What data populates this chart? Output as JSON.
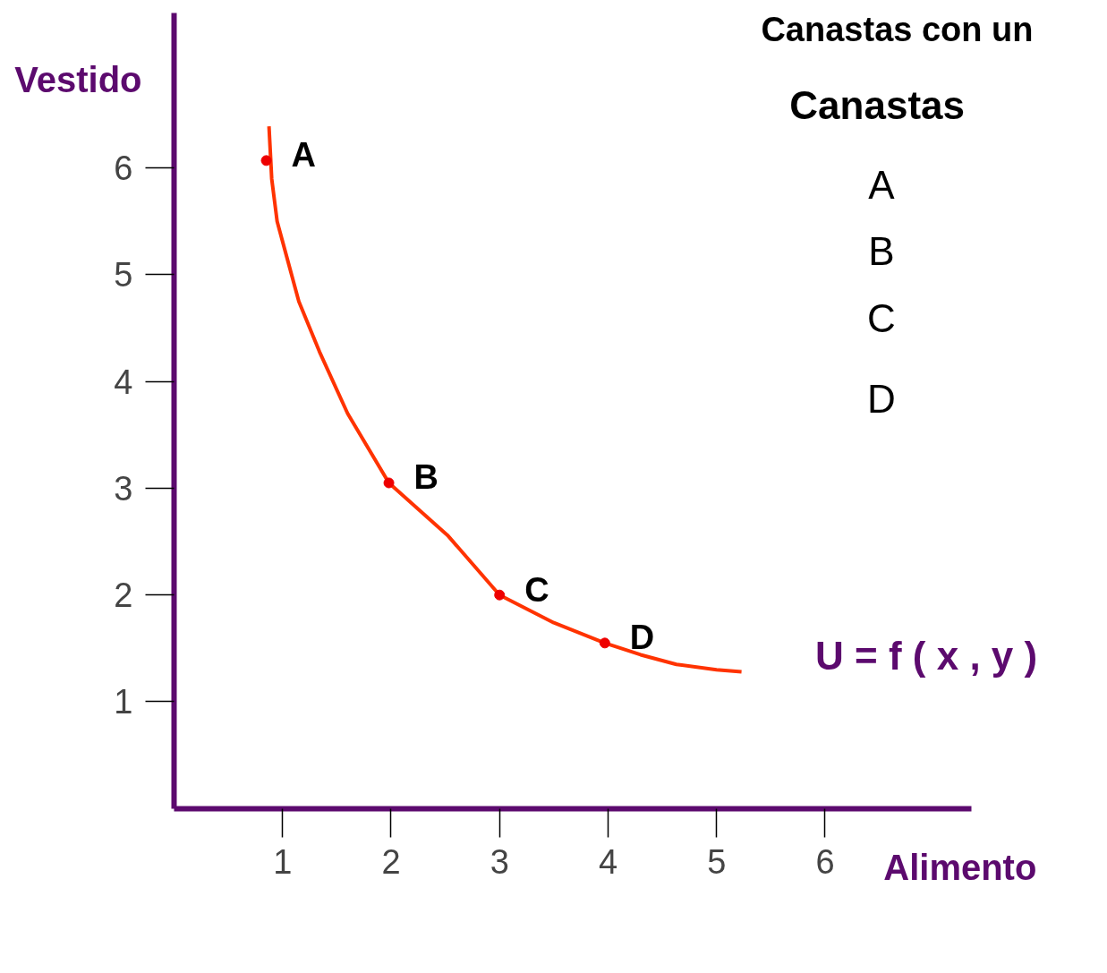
{
  "chart_data": {
    "type": "line",
    "xlabel": "Alimento",
    "ylabel": "Vestido",
    "xlim": [
      0,
      7.35
    ],
    "ylim": [
      0,
      7.45
    ],
    "xticks": [
      1,
      2,
      3,
      4,
      5,
      6
    ],
    "yticks": [
      1,
      2,
      3,
      4,
      5,
      6
    ],
    "grid": false,
    "series": [
      {
        "color": "#ff3300",
        "x": [
          0.875,
          0.9,
          0.95,
          1.03,
          1.15,
          1.34,
          1.6,
          1.98,
          2.52,
          3.0,
          3.5,
          3.97,
          4.3,
          4.63,
          5.0,
          5.23
        ],
        "values": [
          6.39,
          5.9,
          5.5,
          5.2,
          4.75,
          4.28,
          3.7,
          3.05,
          2.56,
          2.0,
          1.74,
          1.55,
          1.44,
          1.35,
          1.3,
          1.28
        ],
        "marker": "none"
      },
      {
        "type": "scatter",
        "color": "#ee0000",
        "x": [
          0.85,
          1.98,
          3.0,
          3.97
        ],
        "values": [
          6.07,
          3.05,
          2.0,
          1.55
        ],
        "marker": "circle"
      }
    ],
    "annotations": [
      {
        "text": "A",
        "x": 0.85,
        "y": 6.07
      },
      {
        "text": "B",
        "x": 1.98,
        "y": 3.05
      },
      {
        "text": "C",
        "x": 3.0,
        "y": 2.0
      },
      {
        "text": "D",
        "x": 3.97,
        "y": 1.55
      },
      "U = f ( x , y )",
      "Canastas con un",
      "Canastas",
      "A",
      "B",
      "C",
      "D"
    ]
  }
}
